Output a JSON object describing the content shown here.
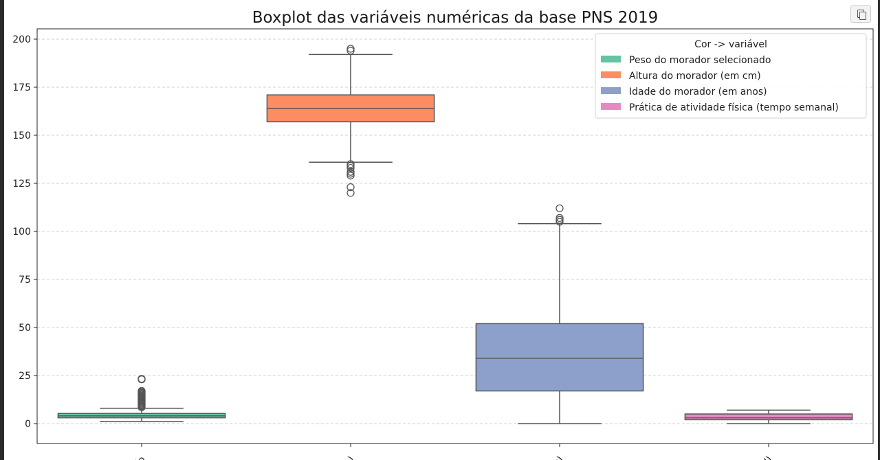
{
  "toolbar": {
    "copy_icon": "copy-icon"
  },
  "colors": {
    "series": [
      "#66c2a5",
      "#fc8d62",
      "#8da0cb",
      "#e78ac3"
    ],
    "box_edge": "#555555",
    "grid": "#b0b0b0"
  },
  "chart_data": {
    "type": "boxplot",
    "title": "Boxplot das variáveis numéricas da base PNS 2019",
    "xlabel": "",
    "ylabel": "",
    "ylim": [
      -10,
      208
    ],
    "y_ticks": [
      0,
      25,
      50,
      75,
      100,
      125,
      150,
      175,
      200
    ],
    "grid": true,
    "legend": {
      "title": "Cor -> variável",
      "placement": "top-right",
      "entries": [
        "Peso do morador selecionado",
        "Altura do morador (em cm)",
        "Idade do morador (em anos)",
        "Prática de atividade física (tempo semanal)"
      ]
    },
    "x_tick_labels_clipped": [
      "ado",
      "m)",
      "os)",
      "nal)"
    ],
    "series": [
      {
        "whisker_low": 1.1,
        "q1": 3.0,
        "median": 4.0,
        "q3": 5.3,
        "whisker_high": 8.0,
        "outliers": [
          8.5,
          9,
          9.5,
          10,
          10.5,
          11,
          11.5,
          12,
          12.5,
          13,
          13.5,
          14,
          14.5,
          15,
          15.5,
          16,
          16.5,
          17,
          23,
          23.3
        ]
      },
      {
        "whisker_low": 136,
        "q1": 157,
        "median": 164,
        "q3": 171,
        "whisker_high": 192,
        "outliers": [
          194,
          195,
          135,
          134,
          133,
          131,
          130,
          129,
          123,
          120
        ]
      },
      {
        "whisker_low": 0,
        "q1": 17,
        "median": 34,
        "q3": 52,
        "whisker_high": 104,
        "outliers": [
          105,
          106,
          107,
          112
        ]
      },
      {
        "whisker_low": 0,
        "q1": 2,
        "median": 3,
        "q3": 5,
        "whisker_high": 7,
        "outliers": []
      }
    ]
  }
}
